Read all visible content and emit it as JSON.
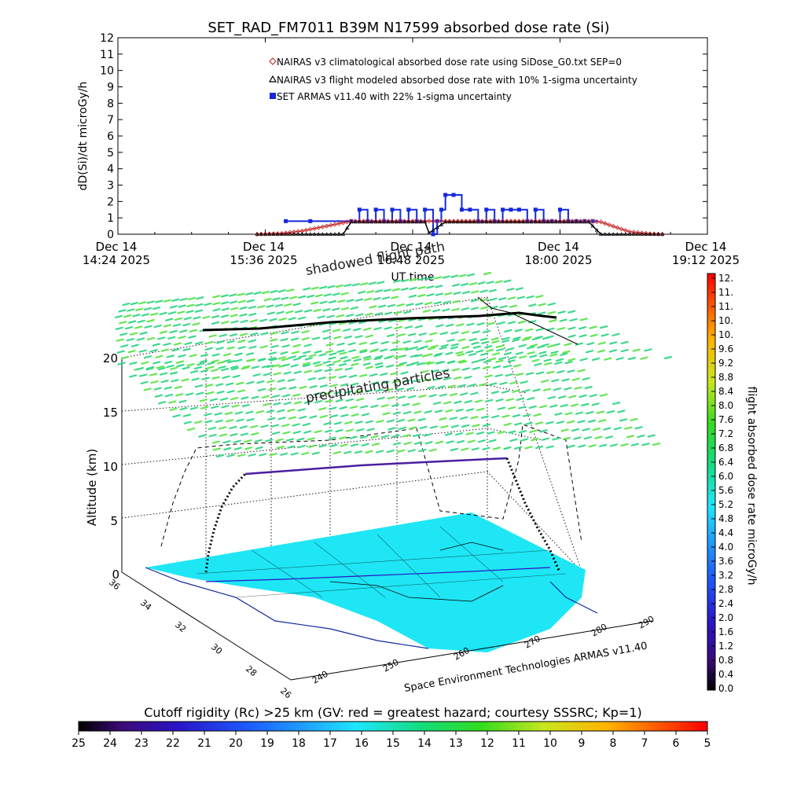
{
  "title": "SET_RAD_FM7011  B39M N17599 absorbed dose rate (Si)",
  "chart_data": [
    {
      "type": "line",
      "name": "dose-rate-timeseries",
      "title": "SET_RAD_FM7011  B39M N17599 absorbed dose rate (Si)",
      "xlabel": "UT time",
      "ylabel": "dD(Si)/dt microGy/h",
      "xlim": [
        0,
        288
      ],
      "ylim": [
        0,
        12
      ],
      "x_unit": "minutes since Dec 14 14:24 2025 UT",
      "x_ticks": [
        {
          "x": 0,
          "line1": "Dec 14",
          "line2": "14:24 2025"
        },
        {
          "x": 72,
          "line1": "Dec 14",
          "line2": "15:36 2025"
        },
        {
          "x": 144,
          "line1": "Dec 14",
          "line2": "16:48 2025"
        },
        {
          "x": 216,
          "line1": "Dec 14",
          "line2": "18:00 2025"
        },
        {
          "x": 288,
          "line1": "Dec 14",
          "line2": "19:12 2025"
        }
      ],
      "y_ticks": [
        "0",
        "1",
        "2",
        "3",
        "4",
        "5",
        "6",
        "7",
        "8",
        "9",
        "10",
        "11",
        "12"
      ],
      "series": [
        {
          "name": "NAIRAS v3 climatological absorbed dose rate using SiDose_G0.txt SEP=0",
          "color": "#c83232",
          "marker": "diamond",
          "x": [
            68,
            80,
            90,
            100,
            110,
            114,
            140,
            170,
            200,
            230,
            236,
            244,
            250,
            260,
            266
          ],
          "values": [
            0,
            0.05,
            0.2,
            0.45,
            0.7,
            0.8,
            0.8,
            0.8,
            0.8,
            0.8,
            0.75,
            0.4,
            0.15,
            0.03,
            0
          ]
        },
        {
          "name": "NAIRAS v3 flight modeled absorbed dose rate with 10% 1-sigma uncertainty",
          "color": "#000000",
          "marker": "triangle",
          "x": [
            68,
            110,
            114,
            150,
            152,
            160,
            200,
            230,
            236,
            266
          ],
          "values": [
            0,
            0,
            0.75,
            0.75,
            0.08,
            0.75,
            0.75,
            0.75,
            0,
            0
          ]
        },
        {
          "name": "SET ARMAS v11.40 with 22% 1-sigma uncertainty",
          "color": "#1428dc",
          "marker": "square",
          "x": [
            82,
            94,
            114,
            118,
            122,
            126,
            130,
            134,
            138,
            142,
            146,
            150,
            154,
            156,
            158,
            160,
            164,
            168,
            172,
            176,
            180,
            184,
            188,
            192,
            196,
            200,
            204,
            208,
            212,
            216,
            220,
            224,
            228,
            232
          ],
          "values": [
            0.8,
            0.8,
            0.8,
            1.5,
            0.8,
            1.5,
            0.8,
            1.5,
            0.8,
            1.5,
            0.8,
            1.5,
            0.0,
            0.8,
            1.5,
            2.4,
            2.4,
            1.5,
            1.5,
            0.8,
            1.5,
            0.8,
            1.5,
            1.5,
            1.5,
            0.8,
            1.5,
            0.8,
            0.8,
            1.5,
            0.8,
            0.8,
            0.8,
            0.8
          ]
        }
      ]
    },
    {
      "type": "scatter",
      "name": "3d-flight-path",
      "view": "3d-perspective",
      "zlabel": "Altitude (km)",
      "zlim": [
        0,
        20
      ],
      "z_ticks": [
        "0",
        "5",
        "10",
        "15",
        "20"
      ],
      "lat_ticks": [
        "36",
        "34",
        "32",
        "30",
        "28",
        "26"
      ],
      "lon_ticks": [
        "240",
        "250",
        "260",
        "270",
        "280",
        "290"
      ],
      "annotations": [
        "shadowed flight path",
        "precipitating particles"
      ],
      "credit": "Space Environment Technologies ARMAS v11.40"
    },
    {
      "type": "heatmap",
      "name": "dose-rate-colorbar",
      "label": "flight absorbed dose rate microGy/h",
      "range": [
        0,
        12.2
      ],
      "ticks": [
        "0.0",
        "0.4",
        "0.8",
        "1.2",
        "1.6",
        "2.0",
        "2.4",
        "2.8",
        "3.2",
        "3.6",
        "4.0",
        "4.4",
        "4.8",
        "5.2",
        "5.6",
        "6.0",
        "6.4",
        "6.8",
        "7.2",
        "7.6",
        "8.0",
        "8.4",
        "8.8",
        "9.2",
        "9.6",
        "10.",
        "10.",
        "11.",
        "11.",
        "12."
      ]
    },
    {
      "type": "heatmap",
      "name": "cutoff-rigidity-colorbar",
      "label": "Cutoff rigidity (Rc) >25 km (GV: red = greatest hazard; courtesy SSSRC; Kp=1)",
      "range": [
        25,
        5
      ],
      "ticks": [
        "25",
        "24",
        "23",
        "22",
        "21",
        "20",
        "19",
        "18",
        "17",
        "16",
        "15",
        "14",
        "13",
        "12",
        "11",
        "10",
        "9",
        "8",
        "7",
        "6",
        "5"
      ]
    }
  ],
  "colors": {
    "nairas_clim": "#c83232",
    "nairas_flight": "#000000",
    "armas": "#1428dc",
    "particles": "#4ce06a",
    "map_fill": "#1ee6f5",
    "flight_line": "#4b1ea0"
  }
}
